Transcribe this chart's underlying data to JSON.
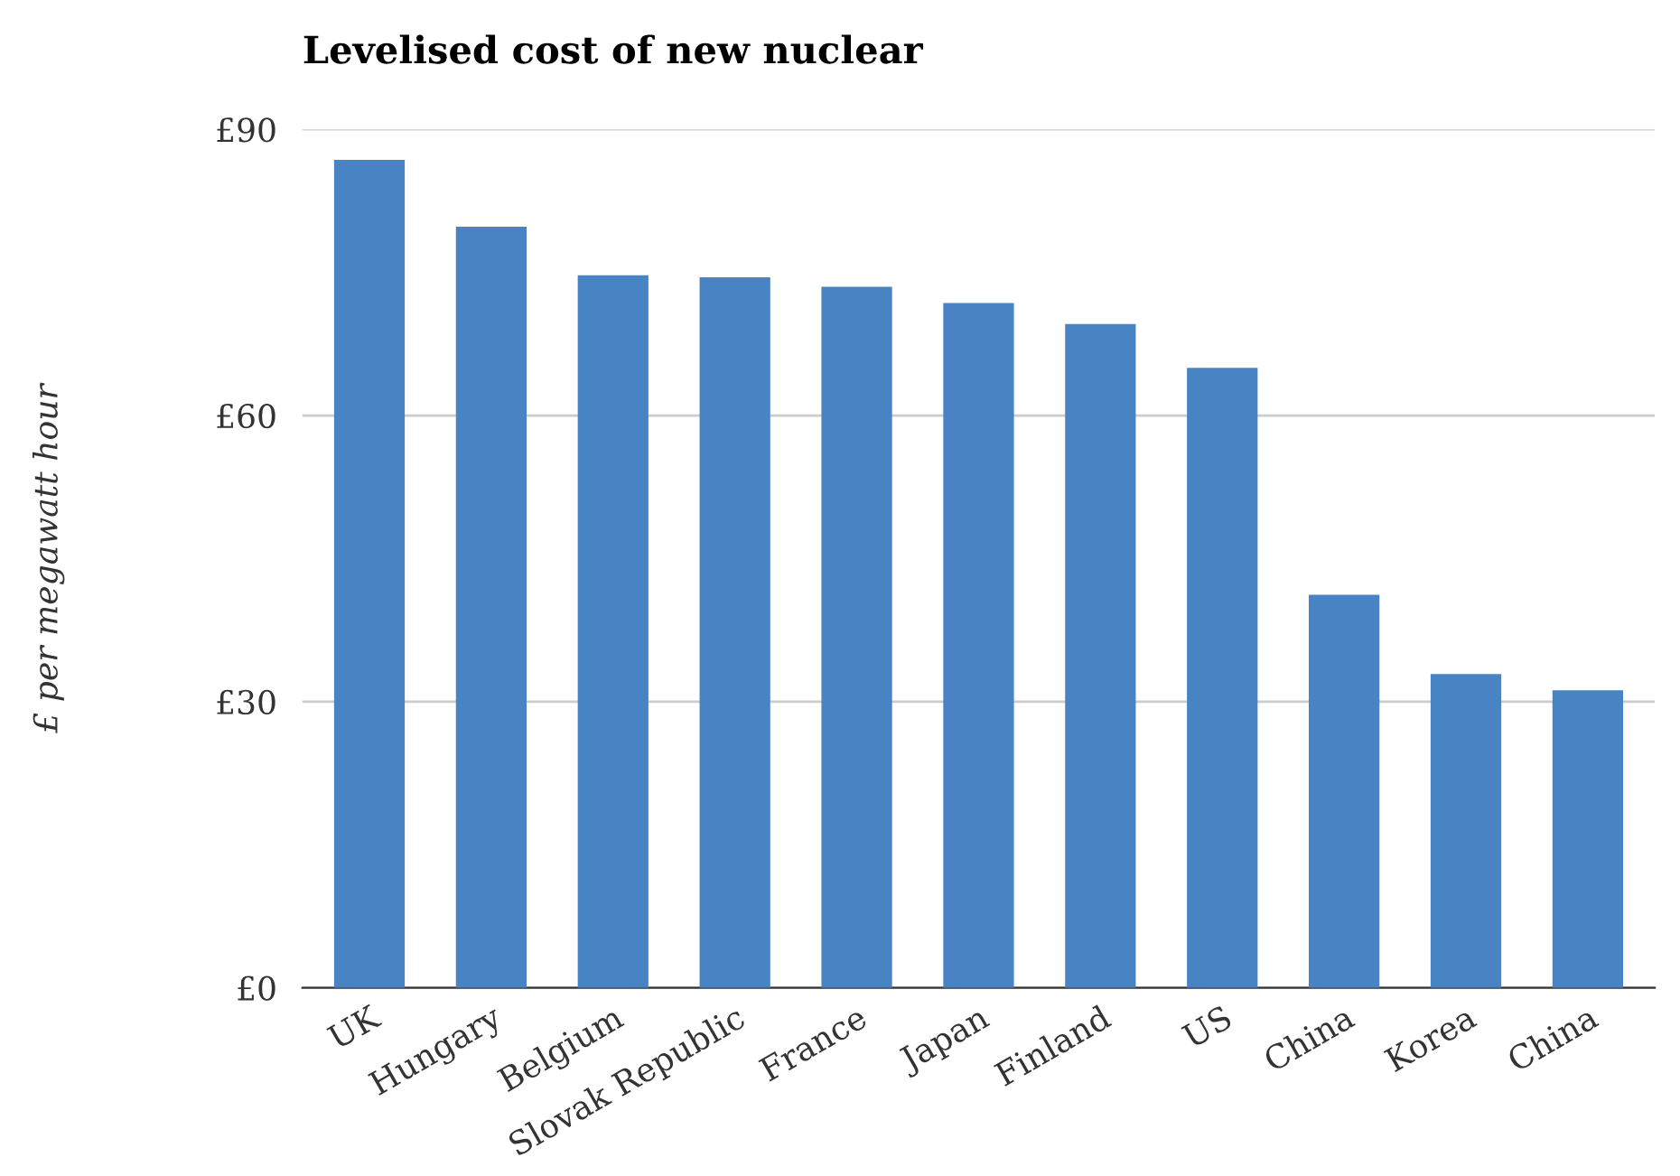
{
  "chart_data": {
    "type": "bar",
    "title": "Levelised cost of new nuclear",
    "ylabel": "£ per megawatt hour",
    "categories": [
      "UK",
      "Hungary",
      "Belgium",
      "Slovak Republic",
      "France",
      "Japan",
      "Finland",
      "US",
      "China",
      "Korea",
      "China"
    ],
    "values": [
      86.8,
      79.8,
      74.7,
      74.5,
      73.5,
      71.8,
      69.6,
      65.0,
      41.2,
      32.9,
      31.2
    ],
    "color": "#4884c4",
    "ylim": [
      0,
      90
    ],
    "yticks": [
      {
        "value": 0,
        "label": "£0"
      },
      {
        "value": 30,
        "label": "£30"
      },
      {
        "value": 60,
        "label": "£60"
      },
      {
        "value": 90,
        "label": "£90"
      }
    ],
    "grid": "y",
    "legend": false
  }
}
